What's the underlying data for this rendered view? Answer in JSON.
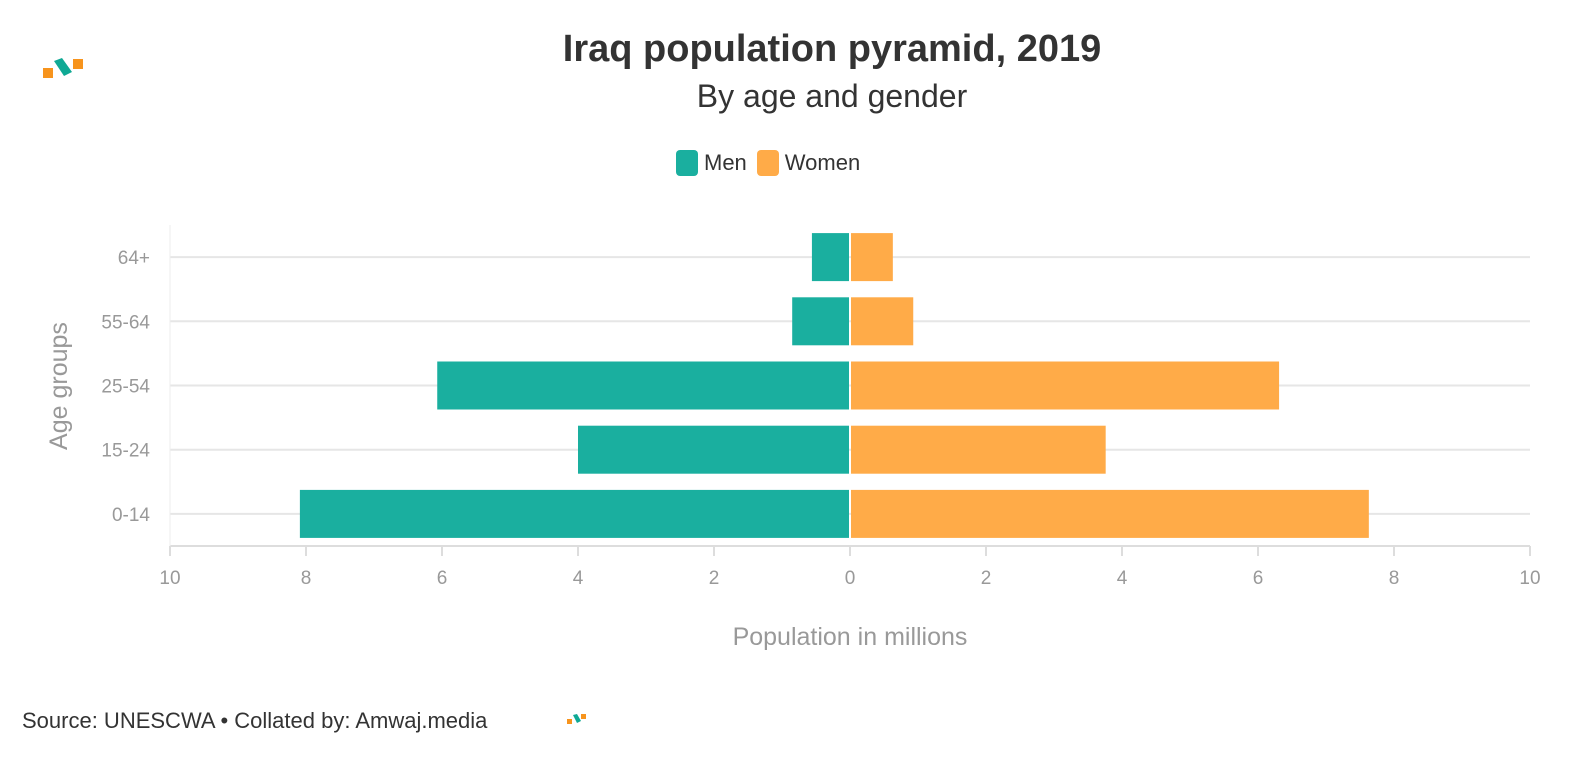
{
  "header": {
    "title": "Iraq population pyramid, 2019",
    "subtitle": "By age and gender"
  },
  "footer": {
    "source": "Source: UNESCWA • Collated by: Amwaj.media"
  },
  "colors": {
    "men": "#1aaf9f",
    "women": "#ffab48",
    "logo_green": "#0fa994",
    "logo_orange": "#f7941d"
  },
  "chart_data": {
    "type": "bar",
    "orientation": "horizontal-pyramid",
    "title": "Iraq population pyramid, 2019",
    "subtitle": "By age and gender",
    "xlabel": "Population in millions",
    "ylabel": "Age groups",
    "categories": [
      "64+",
      "55-64",
      "25-54",
      "15-24",
      "0-14"
    ],
    "series": [
      {
        "name": "Men",
        "values": [
          0.56,
          0.85,
          6.07,
          4.0,
          8.09
        ]
      },
      {
        "name": "Women",
        "values": [
          0.63,
          0.93,
          6.31,
          3.76,
          7.63
        ]
      }
    ],
    "xlim": [
      -10,
      10
    ],
    "xticks": [
      -10,
      -8,
      -6,
      -4,
      -2,
      0,
      2,
      4,
      6,
      8,
      10
    ],
    "xtick_labels": [
      "10",
      "8",
      "6",
      "4",
      "2",
      "0",
      "2",
      "4",
      "6",
      "8",
      "10"
    ],
    "legend": "top-center",
    "grid": true
  }
}
